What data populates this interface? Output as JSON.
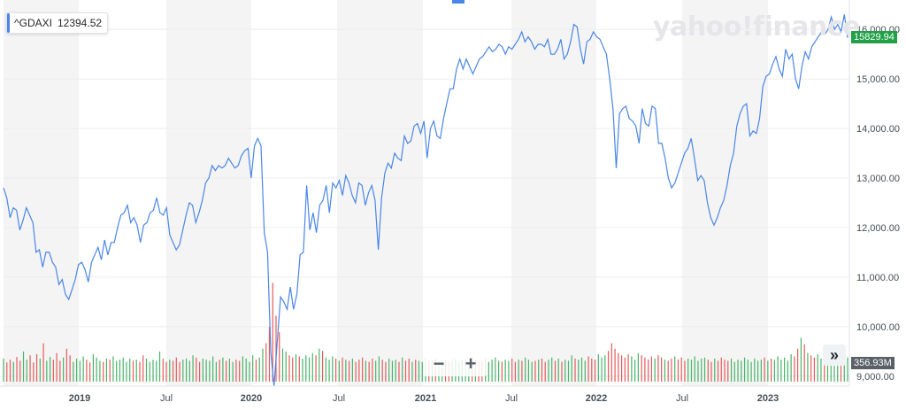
{
  "ticker": {
    "symbol": "^GDAXI",
    "value": "12394.52"
  },
  "logo_text": "yahoo!finance",
  "zoom": {
    "minus": "−",
    "plus": "+"
  },
  "expand_icon": "»",
  "last_price_label": "15829.94",
  "volume_label": "356.93M",
  "colors": {
    "line": "#4a86e8",
    "up": "#47b468",
    "down": "#e85a5a",
    "band": "#f4f4f4",
    "price_badge": "#21a047"
  },
  "chart_data": {
    "type": "line",
    "series": [
      {
        "values": [
          12800,
          12600,
          12200,
          12400,
          12350,
          11950,
          12150,
          12400,
          12250,
          12100,
          11500,
          11550,
          11200,
          11500,
          11500,
          11300,
          11200,
          10850,
          10950,
          10650,
          10550,
          10750,
          10950,
          11250,
          11300,
          11150,
          10900,
          11300,
          11450,
          11600,
          11350,
          11750,
          11450,
          11700,
          11700,
          12000,
          12250,
          12300,
          12450,
          12100,
          12200,
          12050,
          11700,
          12050,
          12100,
          12300,
          12350,
          12600,
          12300,
          12250,
          12400,
          11850,
          11700,
          11550,
          11650,
          11950,
          12250,
          12500,
          12450,
          12100,
          12300,
          12550,
          12900,
          13000,
          13250,
          13150,
          13250,
          13200,
          13250,
          13400,
          13300,
          13200,
          13250,
          13450,
          13550,
          13600,
          13000,
          13650,
          13800,
          13650,
          11900,
          11500,
          9500,
          8800,
          9700,
          10600,
          10500,
          10350,
          10800,
          10350,
          10650,
          11450,
          11500,
          12850,
          11950,
          12300,
          11900,
          12450,
          12550,
          12850,
          12300,
          12900,
          12800,
          12950,
          12650,
          13050,
          12900,
          12650,
          12500,
          12900,
          12850,
          12450,
          12700,
          12850,
          12550,
          11550,
          12600,
          13100,
          13300,
          13200,
          13500,
          13400,
          13350,
          13850,
          13700,
          13750,
          14050,
          14100,
          13900,
          14150,
          13400,
          14000,
          14150,
          13850,
          13800,
          14200,
          14500,
          14800,
          14800,
          15200,
          15400,
          15200,
          15400,
          15250,
          15100,
          15250,
          15400,
          15450,
          15550,
          15650,
          15550,
          15600,
          15700,
          15650,
          15500,
          15650,
          15600,
          15700,
          15800,
          15950,
          15750,
          15850,
          15750,
          15600,
          15700,
          15700,
          15650,
          15800,
          15500,
          15500,
          15600,
          15800,
          15400,
          15500,
          15750,
          16100,
          16050,
          15600,
          15300,
          15750,
          15800,
          15950,
          15850,
          15800,
          15650,
          15500,
          15000,
          14400,
          13200,
          14300,
          14400,
          14450,
          14200,
          14150,
          14050,
          13700,
          14400,
          14100,
          14050,
          14450,
          14400,
          13700,
          13700,
          13400,
          13000,
          12800,
          12900,
          13100,
          13300,
          13500,
          13600,
          13800,
          13400,
          12950,
          13050,
          12950,
          12500,
          12200,
          12050,
          12200,
          12400,
          12550,
          12850,
          13250,
          13500,
          14050,
          14300,
          14450,
          14500,
          13850,
          13950,
          13900,
          14200,
          14850,
          15050,
          15100,
          15300,
          15450,
          15200,
          15050,
          15600,
          15400,
          15500,
          15000,
          14800,
          15250,
          15550,
          15400,
          15650,
          15750,
          15850,
          15950,
          15900,
          16000,
          16250,
          16000,
          16100,
          15950,
          16300,
          15830
        ]
      }
    ],
    "x_labels": [
      "2019",
      "Jul",
      "2020",
      "Jul",
      "2021",
      "Jul",
      "2022",
      "Jul",
      "2023"
    ],
    "y_ticks": [
      "16,000.00",
      "15,000.00",
      "14,000.00",
      "13,000.00",
      "12,000.00",
      "11,000.00",
      "10,000.00",
      "9,000.00"
    ],
    "y_tick_values": [
      16000,
      15000,
      14000,
      13000,
      12000,
      11000,
      10000,
      9000
    ],
    "ylim": [
      8800,
      16450
    ],
    "volume": {
      "values": [
        42,
        35,
        40,
        36,
        45,
        38,
        55,
        40,
        48,
        35,
        50,
        42,
        70,
        38,
        45,
        40,
        52,
        38,
        44,
        60,
        48,
        36,
        42,
        38,
        46,
        40,
        35,
        50,
        44,
        38,
        36,
        42,
        40,
        46,
        38,
        40,
        44,
        36,
        42,
        38,
        40,
        36,
        48,
        42,
        36,
        40,
        38,
        55,
        42,
        36,
        40,
        38,
        44,
        36,
        40,
        42,
        38,
        48,
        44,
        36,
        42,
        40,
        38,
        46,
        36,
        40,
        44,
        38,
        42,
        36,
        40,
        38,
        46,
        42,
        36,
        48,
        40,
        44,
        60,
        70,
        100,
        180,
        120,
        90,
        60,
        55,
        48,
        44,
        50,
        46,
        42,
        48,
        44,
        52,
        48,
        60,
        56,
        44,
        40,
        46,
        42,
        38,
        44,
        40,
        38,
        42,
        36,
        40,
        44,
        38,
        36,
        42,
        38,
        46,
        40,
        36,
        42,
        38,
        40,
        36,
        44,
        38,
        42,
        36,
        40,
        38,
        36,
        44,
        38,
        40,
        42,
        36,
        38,
        40,
        36,
        38,
        42,
        36,
        40,
        38,
        36,
        38,
        40,
        36,
        38,
        42,
        36,
        40,
        44,
        38,
        36,
        40,
        38,
        42,
        36,
        40,
        38,
        44,
        40,
        36,
        38,
        40,
        42,
        36,
        40,
        44,
        38,
        42,
        36,
        40,
        38,
        48,
        42,
        40,
        44,
        38,
        46,
        42,
        40,
        50,
        44,
        48,
        56,
        70,
        60,
        52,
        48,
        44,
        50,
        46,
        40,
        52,
        48,
        44,
        40,
        46,
        42,
        48,
        44,
        40,
        38,
        42,
        46,
        40,
        44,
        38,
        42,
        40,
        46,
        38,
        42,
        44,
        40,
        36,
        42,
        38,
        44,
        40,
        38,
        42,
        36,
        40,
        38,
        44,
        40,
        36,
        42,
        38,
        40,
        44,
        38,
        42,
        40,
        46,
        40,
        44,
        38,
        50,
        46,
        60,
        80,
        68,
        52,
        48,
        44,
        50,
        42,
        40,
        38,
        42,
        44,
        40,
        46,
        38,
        44
      ],
      "up_pattern_seed": 7
    }
  }
}
